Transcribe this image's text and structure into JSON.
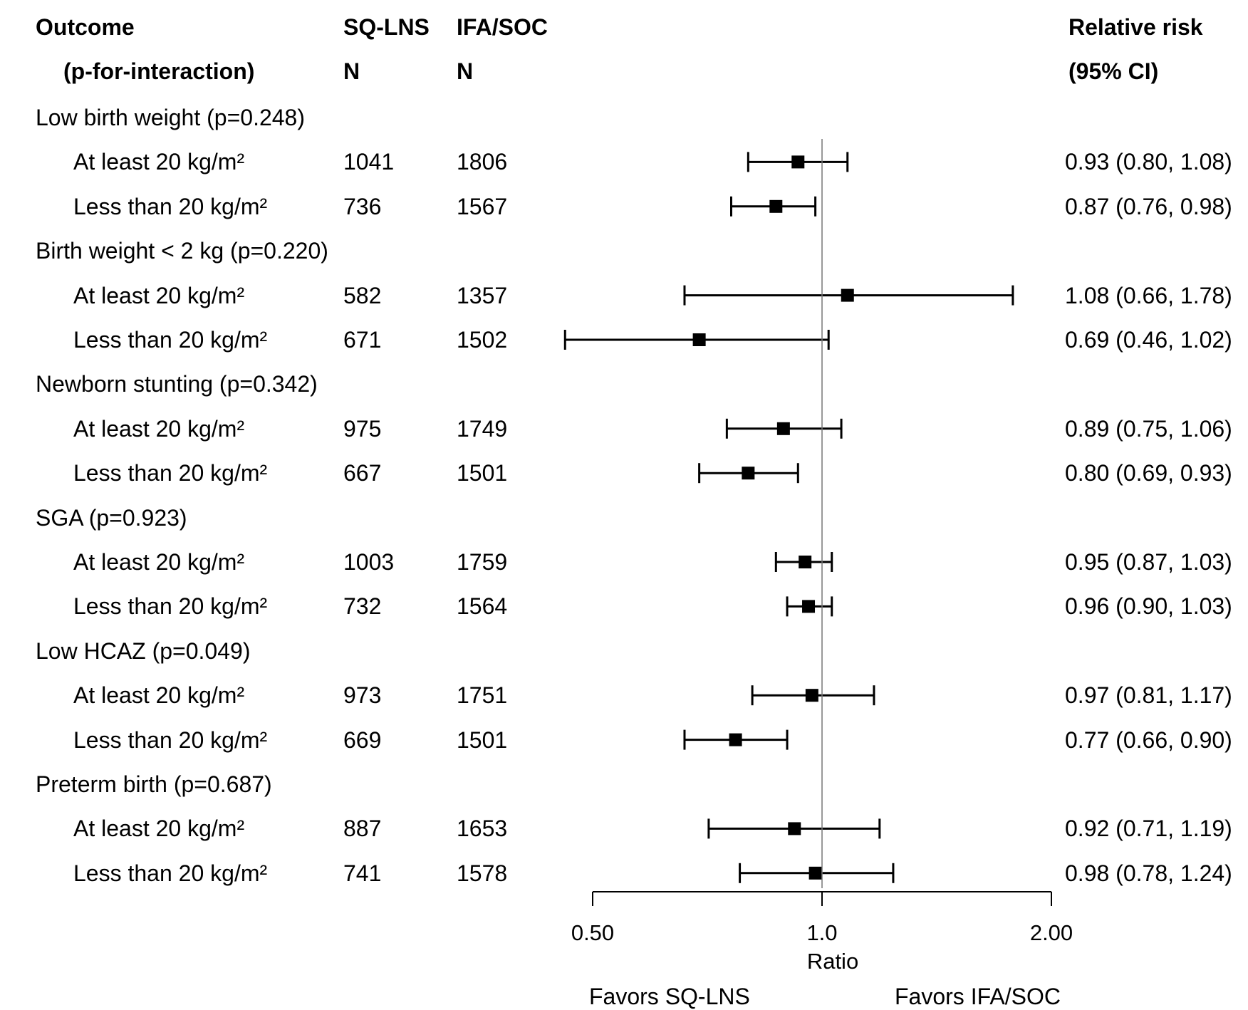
{
  "headers": {
    "outcome": "Outcome",
    "pinteraction": "(p-for-interaction)",
    "group_a": "SQ-LNS",
    "group_a_n": "N",
    "group_b": "IFA/SOC",
    "group_b_n": "N",
    "rr": "Relative risk",
    "ci": "(95% CI)"
  },
  "footer": {
    "favors_left": "Favors SQ-LNS",
    "favors_right": "Favors IFA/SOC"
  },
  "chart_data": {
    "type": "forest",
    "xlabel": "Ratio",
    "xscale": "log",
    "xlim": [
      0.5,
      2.0
    ],
    "xticks": [
      "0.50",
      "1.0",
      "2.00"
    ],
    "xtick_values": [
      0.5,
      1.0,
      2.0
    ],
    "reference_line": 1.0,
    "groups": [
      {
        "label": "Low birth weight (p=0.248)",
        "rows": [
          {
            "subgroup": "At least 20 kg/m²",
            "n_a": "1041",
            "n_b": "1806",
            "rr": 0.93,
            "lo": 0.8,
            "hi": 1.08,
            "text": "0.93 (0.80, 1.08)"
          },
          {
            "subgroup": "Less than 20 kg/m²",
            "n_a": "736",
            "n_b": "1567",
            "rr": 0.87,
            "lo": 0.76,
            "hi": 0.98,
            "text": "0.87 (0.76, 0.98)"
          }
        ]
      },
      {
        "label": "Birth weight < 2 kg (p=0.220)",
        "rows": [
          {
            "subgroup": "At least 20 kg/m²",
            "n_a": "582",
            "n_b": "1357",
            "rr": 1.08,
            "lo": 0.66,
            "hi": 1.78,
            "text": "1.08 (0.66, 1.78)"
          },
          {
            "subgroup": "Less than 20 kg/m²",
            "n_a": "671",
            "n_b": "1502",
            "rr": 0.69,
            "lo": 0.46,
            "hi": 1.02,
            "text": "0.69 (0.46, 1.02)"
          }
        ]
      },
      {
        "label": "Newborn stunting (p=0.342)",
        "rows": [
          {
            "subgroup": "At least 20 kg/m²",
            "n_a": "975",
            "n_b": "1749",
            "rr": 0.89,
            "lo": 0.75,
            "hi": 1.06,
            "text": "0.89 (0.75, 1.06)"
          },
          {
            "subgroup": "Less than 20 kg/m²",
            "n_a": "667",
            "n_b": "1501",
            "rr": 0.8,
            "lo": 0.69,
            "hi": 0.93,
            "text": "0.80 (0.69, 0.93)"
          }
        ]
      },
      {
        "label": "SGA (p=0.923)",
        "rows": [
          {
            "subgroup": "At least 20 kg/m²",
            "n_a": "1003",
            "n_b": "1759",
            "rr": 0.95,
            "lo": 0.87,
            "hi": 1.03,
            "text": "0.95 (0.87, 1.03)"
          },
          {
            "subgroup": "Less than 20 kg/m²",
            "n_a": "732",
            "n_b": "1564",
            "rr": 0.96,
            "lo": 0.9,
            "hi": 1.03,
            "text": "0.96 (0.90, 1.03)"
          }
        ]
      },
      {
        "label": "Low HCAZ (p=0.049)",
        "rows": [
          {
            "subgroup": "At least 20 kg/m²",
            "n_a": "973",
            "n_b": "1751",
            "rr": 0.97,
            "lo": 0.81,
            "hi": 1.17,
            "text": "0.97 (0.81, 1.17)"
          },
          {
            "subgroup": "Less than 20 kg/m²",
            "n_a": "669",
            "n_b": "1501",
            "rr": 0.77,
            "lo": 0.66,
            "hi": 0.9,
            "text": "0.77 (0.66, 0.90)"
          }
        ]
      },
      {
        "label": "Preterm birth (p=0.687)",
        "rows": [
          {
            "subgroup": "At least 20 kg/m²",
            "n_a": "887",
            "n_b": "1653",
            "rr": 0.92,
            "lo": 0.71,
            "hi": 1.19,
            "text": "0.92 (0.71, 1.19)"
          },
          {
            "subgroup": "Less than 20 kg/m²",
            "n_a": "741",
            "n_b": "1578",
            "rr": 0.98,
            "lo": 0.78,
            "hi": 1.24,
            "text": "0.98 (0.78, 1.24)"
          }
        ]
      }
    ]
  }
}
